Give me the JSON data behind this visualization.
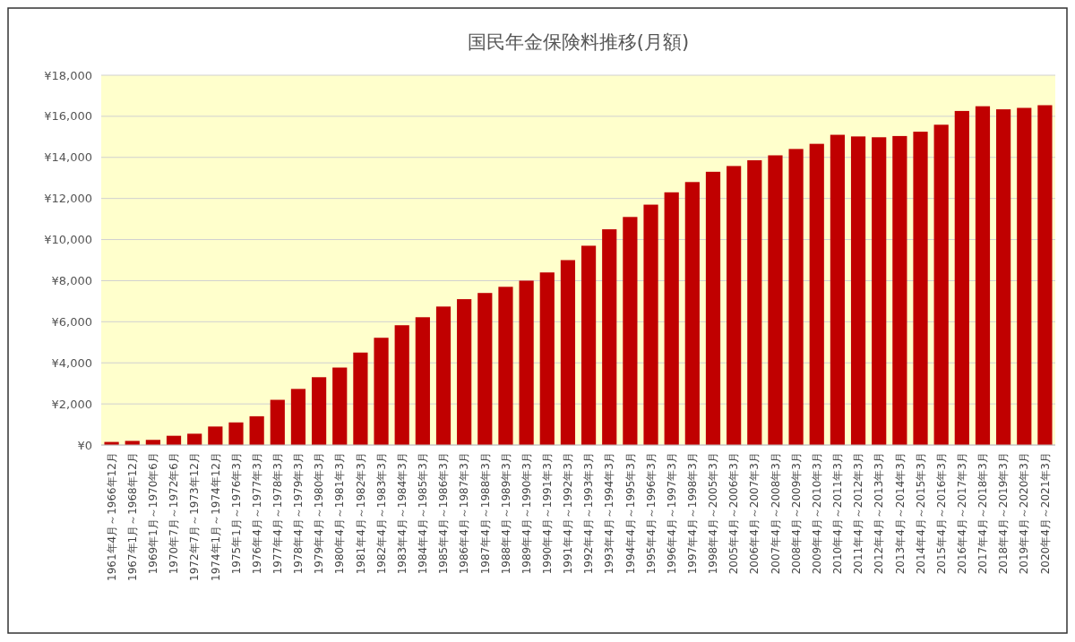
{
  "chart_data": {
    "type": "bar",
    "title": "国民年金保険料推移(月額)",
    "categories": [
      "1961年4月～1966年12月",
      "1967年1月～1968年12月",
      "1969年1月～1970年6月",
      "1970年7月～1972年6月",
      "1972年7月～1973年12月",
      "1974年1月～1974年12月",
      "1975年1月～1976年3月",
      "1976年4月～1977年3月",
      "1977年4月～1978年3月",
      "1978年4月～1979年3月",
      "1979年4月～1980年3月",
      "1980年4月～1981年3月",
      "1981年4月～1982年3月",
      "1982年4月～1983年3月",
      "1983年4月～1984年3月",
      "1984年4月～1985年3月",
      "1985年4月～1986年3月",
      "1986年4月～1987年3月",
      "1987年4月～1988年3月",
      "1988年4月～1989年3月",
      "1989年4月～1990年3月",
      "1990年4月～1991年3月",
      "1991年4月～1992年3月",
      "1992年4月～1993年3月",
      "1993年4月～1994年3月",
      "1994年4月～1995年3月",
      "1995年4月～1996年3月",
      "1996年4月～1997年3月",
      "1997年4月～1998年3月",
      "1998年4月～2005年3月",
      "2005年4月～2006年3月",
      "2006年4月～2007年3月",
      "2007年4月～2008年3月",
      "2008年4月～2009年3月",
      "2009年4月～2010年3月",
      "2010年4月～2011年3月",
      "2011年4月～2012年3月",
      "2012年4月～2013年3月",
      "2013年4月～2014年3月",
      "2014年4月～2015年3月",
      "2015年4月～2016年3月",
      "2016年4月～2017年3月",
      "2017年4月～2018年3月",
      "2018年4月～2019年3月",
      "2019年4月～2020年3月",
      "2020年4月～2021年3月"
    ],
    "values": [
      150,
      200,
      250,
      450,
      550,
      900,
      1100,
      1400,
      2200,
      2730,
      3300,
      3770,
      4500,
      5220,
      5830,
      6220,
      6740,
      7100,
      7400,
      7700,
      8000,
      8400,
      9000,
      9700,
      10500,
      11100,
      11700,
      12300,
      12800,
      13300,
      13580,
      13860,
      14100,
      14410,
      14660,
      15100,
      15020,
      14980,
      15040,
      15250,
      15590,
      16260,
      16490,
      16340,
      16410,
      16540
    ],
    "color": "#c00000",
    "ylim": [
      0,
      18000
    ],
    "yticks": [
      {
        "value": 0,
        "label": "¥0"
      },
      {
        "value": 2000,
        "label": "¥2,000"
      },
      {
        "value": 4000,
        "label": "¥4,000"
      },
      {
        "value": 6000,
        "label": "¥6,000"
      },
      {
        "value": 8000,
        "label": "¥8,000"
      },
      {
        "value": 10000,
        "label": "¥10,000"
      },
      {
        "value": 12000,
        "label": "¥12,000"
      },
      {
        "value": 14000,
        "label": "¥14,000"
      },
      {
        "value": 16000,
        "label": "¥16,000"
      },
      {
        "value": 18000,
        "label": "¥18,000"
      }
    ],
    "grid": "y"
  }
}
